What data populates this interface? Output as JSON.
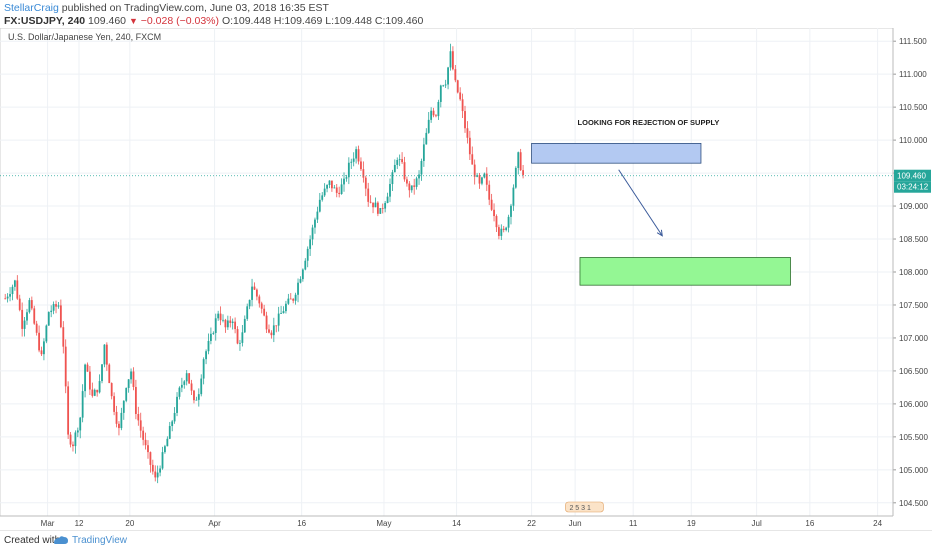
{
  "header": {
    "author": "StellarCraig",
    "published": "published on TradingView.com, June 03, 2018 16:35 EST",
    "symbol": "FX:USDJPY, 240",
    "last": "109.460",
    "change": "−0.028 (−0.03%)",
    "ohlc": "O:109.448 H:109.469 L:109.448 C:109.460"
  },
  "footer": {
    "created": "Created with",
    "brand": "TradingView"
  },
  "chart_data": {
    "type": "candlestick",
    "title": "U.S. Dollar/Japanese Yen, 240, FXCM",
    "y_range": [
      104.3,
      111.7
    ],
    "y_ticks": [
      "111.500",
      "111.000",
      "110.500",
      "110.000",
      "109.500",
      "109.000",
      "108.500",
      "108.000",
      "107.500",
      "107.000",
      "106.500",
      "106.000",
      "105.500",
      "105.000",
      "104.500"
    ],
    "x_labels": [
      "Mar",
      "12",
      "20",
      "Apr",
      "16",
      "May",
      "14",
      "22",
      "Jun",
      "11",
      "19",
      "Jul",
      "16",
      "24"
    ],
    "price_label": "109.460",
    "countdown_label": "03:24:12",
    "annotation": "LOOKING FOR REJECTION OF SUPPLY",
    "events_badge": "2 5 3 1",
    "supply_zone": {
      "top": 109.95,
      "bottom": 109.65,
      "color": "#b3c9f2"
    },
    "demand_zone": {
      "top": 108.22,
      "bottom": 107.8,
      "color": "#94f794"
    },
    "colors": {
      "up": "#26a69a",
      "down": "#ef5350",
      "line": "#26a69a"
    },
    "anchors": [
      [
        0,
        107.6
      ],
      [
        4,
        107.85
      ],
      [
        7,
        107.2
      ],
      [
        10,
        107.55
      ],
      [
        15,
        106.7
      ],
      [
        18,
        107.4
      ],
      [
        22,
        107.5
      ],
      [
        24,
        106.9
      ],
      [
        26,
        105.5
      ],
      [
        28,
        105.4
      ],
      [
        31,
        105.8
      ],
      [
        33,
        106.6
      ],
      [
        36,
        106.1
      ],
      [
        39,
        106.3
      ],
      [
        41,
        106.9
      ],
      [
        44,
        106.1
      ],
      [
        47,
        105.6
      ],
      [
        50,
        106.3
      ],
      [
        52,
        106.5
      ],
      [
        54,
        105.9
      ],
      [
        56,
        105.6
      ],
      [
        59,
        105.2
      ],
      [
        62,
        104.85
      ],
      [
        65,
        105.2
      ],
      [
        68,
        105.6
      ],
      [
        72,
        106.2
      ],
      [
        75,
        106.5
      ],
      [
        78,
        106.0
      ],
      [
        80,
        106.2
      ],
      [
        82,
        106.7
      ],
      [
        85,
        107.0
      ],
      [
        88,
        107.4
      ],
      [
        91,
        107.15
      ],
      [
        94,
        107.3
      ],
      [
        96,
        106.9
      ],
      [
        98,
        107.05
      ],
      [
        102,
        107.8
      ],
      [
        105,
        107.55
      ],
      [
        108,
        107.2
      ],
      [
        110,
        107.1
      ],
      [
        113,
        107.3
      ],
      [
        116,
        107.5
      ],
      [
        119,
        107.6
      ],
      [
        122,
        107.95
      ],
      [
        126,
        108.5
      ],
      [
        130,
        109.1
      ],
      [
        134,
        109.35
      ],
      [
        137,
        109.2
      ],
      [
        140,
        109.35
      ],
      [
        142,
        109.6
      ],
      [
        145,
        109.85
      ],
      [
        148,
        109.5
      ],
      [
        150,
        109.1
      ],
      [
        153,
        109.0
      ],
      [
        155,
        108.9
      ],
      [
        158,
        109.2
      ],
      [
        160,
        109.45
      ],
      [
        162,
        109.75
      ],
      [
        164,
        109.6
      ],
      [
        166,
        109.3
      ],
      [
        168,
        109.25
      ],
      [
        171,
        109.45
      ],
      [
        173,
        109.9
      ],
      [
        176,
        110.45
      ],
      [
        178,
        110.4
      ],
      [
        180,
        110.85
      ],
      [
        182,
        110.9
      ],
      [
        184,
        111.3
      ],
      [
        186,
        110.85
      ],
      [
        188,
        110.6
      ],
      [
        191,
        110.0
      ],
      [
        193,
        109.6
      ],
      [
        196,
        109.3
      ],
      [
        198,
        109.45
      ],
      [
        200,
        109.1
      ],
      [
        202,
        108.9
      ],
      [
        204,
        108.6
      ],
      [
        206,
        108.6
      ],
      [
        208,
        108.85
      ],
      [
        210,
        109.3
      ],
      [
        212,
        109.75
      ],
      [
        214,
        109.46
      ]
    ],
    "x_ticks_at": [
      18,
      31,
      52,
      87,
      123,
      157,
      187,
      218,
      236,
      260,
      284,
      311,
      333,
      361
    ],
    "future_bars": 390
  }
}
